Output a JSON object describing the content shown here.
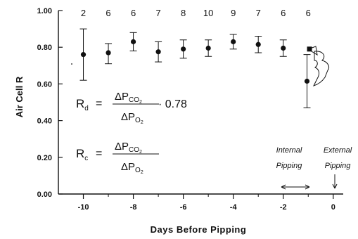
{
  "chart_data": {
    "type": "scatter",
    "xlabel": "Days Before Pipping",
    "ylabel": "Air Cell R",
    "xlim": [
      -11,
      0.4
    ],
    "ylim": [
      0,
      1.0
    ],
    "x_ticks": [
      -10,
      -8,
      -6,
      -4,
      -2,
      0
    ],
    "x_tick_labels": [
      "-10",
      "-8",
      "-6",
      "-4",
      "-2",
      "0"
    ],
    "x_minor_ticks": [
      -9,
      -7,
      -5,
      -3,
      -1
    ],
    "y_ticks": [
      0,
      0.2,
      0.4,
      0.6,
      0.8,
      1.0
    ],
    "y_tick_labels": [
      "0.00",
      "0.20",
      "0.40",
      "0.60",
      "0.80",
      "1.00"
    ],
    "grid": false,
    "series": [
      {
        "marker": "circle",
        "points": [
          {
            "x": -10,
            "y": 0.76,
            "err_hi": 0.9,
            "err_lo": 0.62,
            "n": "2"
          },
          {
            "x": -9,
            "y": 0.77,
            "err_hi": 0.82,
            "err_lo": 0.71,
            "n": "6"
          },
          {
            "x": -8,
            "y": 0.83,
            "err_hi": 0.88,
            "err_lo": 0.78,
            "n": "6"
          },
          {
            "x": -7,
            "y": 0.775,
            "err_hi": 0.83,
            "err_lo": 0.72,
            "n": "7"
          },
          {
            "x": -6,
            "y": 0.79,
            "err_hi": 0.84,
            "err_lo": 0.74,
            "n": "8"
          },
          {
            "x": -5,
            "y": 0.795,
            "err_hi": 0.84,
            "err_lo": 0.75,
            "n": "10"
          },
          {
            "x": -4,
            "y": 0.83,
            "err_hi": 0.87,
            "err_lo": 0.79,
            "n": "9"
          },
          {
            "x": -3,
            "y": 0.815,
            "err_hi": 0.86,
            "err_lo": 0.77,
            "n": "7"
          },
          {
            "x": -2,
            "y": 0.795,
            "err_hi": 0.84,
            "err_lo": 0.75,
            "n": "6"
          },
          {
            "x": -1.05,
            "y": 0.615,
            "err_hi": 0.76,
            "err_lo": 0.47,
            "n": "6"
          }
        ]
      },
      {
        "marker": "square",
        "points": [
          {
            "x": -0.95,
            "y": 0.79
          }
        ]
      }
    ],
    "equations": {
      "rd": {
        "lhs": "R",
        "sub": "d",
        "eq": "=",
        "num": "ΔP",
        "num_sub": "CO",
        "num_sub2": "2",
        "den": "ΔP",
        "den_sub": "O",
        "den_sub2": "2",
        "factor": "· 0.78"
      },
      "rc": {
        "lhs": "R",
        "sub": "c",
        "eq": "=",
        "num": "ΔP",
        "num_sub": "CO",
        "num_sub2": "2",
        "den": "ΔP",
        "den_sub": "O",
        "den_sub2": "2"
      }
    },
    "annotations": {
      "internal": [
        "Internal",
        "Pipping"
      ],
      "external": [
        "External",
        "Pipping"
      ]
    }
  }
}
